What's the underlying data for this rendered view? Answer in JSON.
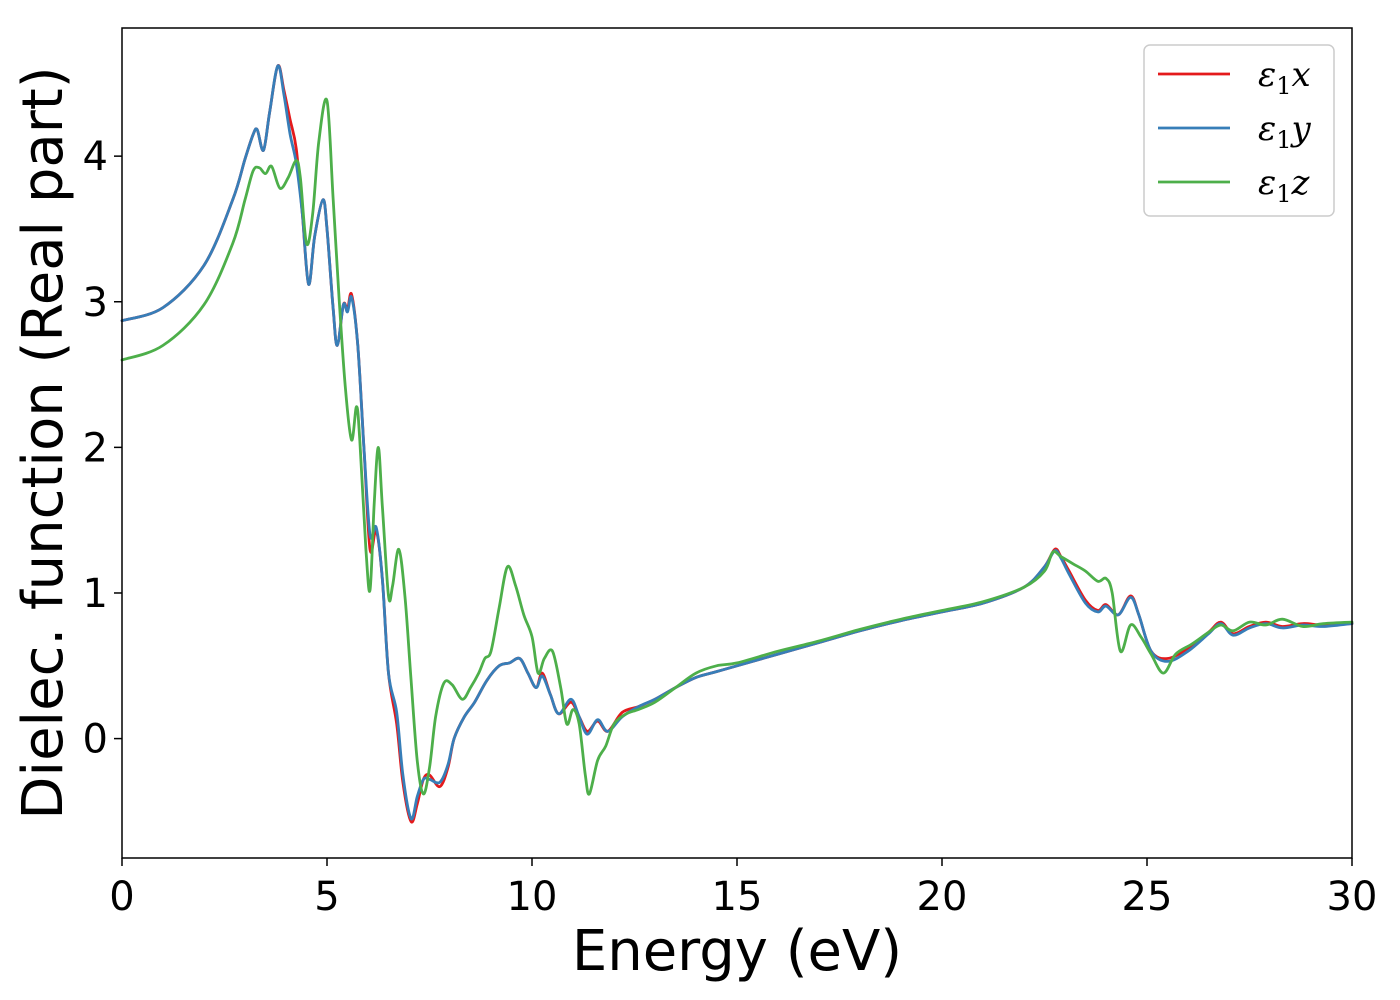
{
  "chart_data": {
    "type": "line",
    "title": "",
    "xlabel": "Energy (eV)",
    "ylabel": "Dielec. function (Real part)",
    "xlim": [
      0,
      30
    ],
    "ylim": [
      -0.82,
      4.88
    ],
    "xticks": [
      0,
      5,
      10,
      15,
      20,
      25,
      30
    ],
    "yticks": [
      0,
      1,
      2,
      3,
      4
    ],
    "grid": false,
    "legend": "top-right",
    "series": [
      {
        "name": "ε₁x",
        "legend_base": "ε",
        "legend_sub": "1",
        "legend_tail": "x",
        "color": "#e41a1c",
        "points": [
          [
            0,
            2.87
          ],
          [
            1,
            2.96
          ],
          [
            2,
            3.25
          ],
          [
            2.7,
            3.7
          ],
          [
            3.0,
            3.98
          ],
          [
            3.2,
            4.15
          ],
          [
            3.3,
            4.18
          ],
          [
            3.45,
            4.04
          ],
          [
            3.6,
            4.3
          ],
          [
            3.8,
            4.62
          ],
          [
            3.95,
            4.45
          ],
          [
            4.1,
            4.25
          ],
          [
            4.25,
            4.05
          ],
          [
            4.4,
            3.6
          ],
          [
            4.55,
            3.12
          ],
          [
            4.7,
            3.45
          ],
          [
            4.9,
            3.7
          ],
          [
            5.0,
            3.5
          ],
          [
            5.15,
            2.95
          ],
          [
            5.25,
            2.7
          ],
          [
            5.4,
            2.98
          ],
          [
            5.5,
            2.95
          ],
          [
            5.6,
            3.05
          ],
          [
            5.75,
            2.7
          ],
          [
            5.9,
            2.0
          ],
          [
            6.05,
            1.3
          ],
          [
            6.2,
            1.43
          ],
          [
            6.35,
            1.1
          ],
          [
            6.5,
            0.45
          ],
          [
            6.7,
            0.1
          ],
          [
            6.85,
            -0.3
          ],
          [
            7.05,
            -0.57
          ],
          [
            7.2,
            -0.45
          ],
          [
            7.35,
            -0.28
          ],
          [
            7.5,
            -0.25
          ],
          [
            7.75,
            -0.33
          ],
          [
            7.95,
            -0.2
          ],
          [
            8.1,
            0.0
          ],
          [
            8.35,
            0.15
          ],
          [
            8.6,
            0.25
          ],
          [
            8.9,
            0.4
          ],
          [
            9.2,
            0.5
          ],
          [
            9.45,
            0.52
          ],
          [
            9.7,
            0.55
          ],
          [
            9.9,
            0.45
          ],
          [
            10.1,
            0.35
          ],
          [
            10.25,
            0.45
          ],
          [
            10.45,
            0.3
          ],
          [
            10.65,
            0.17
          ],
          [
            10.95,
            0.25
          ],
          [
            11.15,
            0.15
          ],
          [
            11.35,
            0.05
          ],
          [
            11.6,
            0.12
          ],
          [
            11.85,
            0.05
          ],
          [
            12.2,
            0.18
          ],
          [
            12.6,
            0.22
          ],
          [
            13.0,
            0.27
          ],
          [
            13.5,
            0.35
          ],
          [
            14.0,
            0.42
          ],
          [
            14.5,
            0.46
          ],
          [
            15.0,
            0.5
          ],
          [
            16.0,
            0.58
          ],
          [
            17.0,
            0.66
          ],
          [
            18.0,
            0.74
          ],
          [
            19.0,
            0.81
          ],
          [
            20.0,
            0.87
          ],
          [
            21.0,
            0.93
          ],
          [
            22.0,
            1.04
          ],
          [
            22.5,
            1.18
          ],
          [
            22.75,
            1.3
          ],
          [
            22.9,
            1.25
          ],
          [
            23.1,
            1.15
          ],
          [
            23.5,
            0.95
          ],
          [
            23.8,
            0.88
          ],
          [
            24.0,
            0.92
          ],
          [
            24.3,
            0.85
          ],
          [
            24.6,
            0.98
          ],
          [
            24.8,
            0.85
          ],
          [
            25.1,
            0.6
          ],
          [
            25.5,
            0.55
          ],
          [
            26.0,
            0.62
          ],
          [
            26.5,
            0.73
          ],
          [
            26.8,
            0.8
          ],
          [
            27.1,
            0.72
          ],
          [
            27.5,
            0.77
          ],
          [
            27.9,
            0.8
          ],
          [
            28.3,
            0.77
          ],
          [
            28.8,
            0.79
          ],
          [
            29.3,
            0.78
          ],
          [
            30.0,
            0.79
          ]
        ]
      },
      {
        "name": "ε₁y",
        "legend_base": "ε",
        "legend_sub": "1",
        "legend_tail": "y",
        "color": "#377eb8",
        "points": [
          [
            0,
            2.87
          ],
          [
            1,
            2.96
          ],
          [
            2,
            3.25
          ],
          [
            2.7,
            3.7
          ],
          [
            3.0,
            3.98
          ],
          [
            3.2,
            4.15
          ],
          [
            3.3,
            4.18
          ],
          [
            3.45,
            4.04
          ],
          [
            3.6,
            4.3
          ],
          [
            3.8,
            4.62
          ],
          [
            3.95,
            4.42
          ],
          [
            4.1,
            4.15
          ],
          [
            4.25,
            3.95
          ],
          [
            4.4,
            3.6
          ],
          [
            4.55,
            3.12
          ],
          [
            4.7,
            3.45
          ],
          [
            4.9,
            3.7
          ],
          [
            5.0,
            3.5
          ],
          [
            5.15,
            2.95
          ],
          [
            5.25,
            2.7
          ],
          [
            5.4,
            2.98
          ],
          [
            5.5,
            2.93
          ],
          [
            5.6,
            3.03
          ],
          [
            5.75,
            2.7
          ],
          [
            5.9,
            2.0
          ],
          [
            6.05,
            1.4
          ],
          [
            6.2,
            1.45
          ],
          [
            6.35,
            1.1
          ],
          [
            6.5,
            0.45
          ],
          [
            6.7,
            0.18
          ],
          [
            6.85,
            -0.25
          ],
          [
            7.05,
            -0.55
          ],
          [
            7.2,
            -0.4
          ],
          [
            7.35,
            -0.28
          ],
          [
            7.5,
            -0.28
          ],
          [
            7.75,
            -0.3
          ],
          [
            7.95,
            -0.18
          ],
          [
            8.1,
            0.0
          ],
          [
            8.35,
            0.15
          ],
          [
            8.6,
            0.25
          ],
          [
            8.9,
            0.4
          ],
          [
            9.2,
            0.5
          ],
          [
            9.45,
            0.52
          ],
          [
            9.7,
            0.55
          ],
          [
            9.9,
            0.45
          ],
          [
            10.1,
            0.35
          ],
          [
            10.25,
            0.43
          ],
          [
            10.45,
            0.3
          ],
          [
            10.65,
            0.17
          ],
          [
            10.95,
            0.27
          ],
          [
            11.15,
            0.15
          ],
          [
            11.35,
            0.03
          ],
          [
            11.6,
            0.13
          ],
          [
            11.85,
            0.05
          ],
          [
            12.2,
            0.15
          ],
          [
            12.6,
            0.22
          ],
          [
            13.0,
            0.27
          ],
          [
            13.5,
            0.35
          ],
          [
            14.0,
            0.42
          ],
          [
            14.5,
            0.46
          ],
          [
            15.0,
            0.5
          ],
          [
            16.0,
            0.58
          ],
          [
            17.0,
            0.66
          ],
          [
            18.0,
            0.74
          ],
          [
            19.0,
            0.81
          ],
          [
            20.0,
            0.87
          ],
          [
            21.0,
            0.93
          ],
          [
            22.0,
            1.04
          ],
          [
            22.5,
            1.18
          ],
          [
            22.75,
            1.29
          ],
          [
            22.9,
            1.24
          ],
          [
            23.1,
            1.13
          ],
          [
            23.5,
            0.93
          ],
          [
            23.8,
            0.87
          ],
          [
            24.0,
            0.91
          ],
          [
            24.3,
            0.85
          ],
          [
            24.6,
            0.97
          ],
          [
            24.8,
            0.85
          ],
          [
            25.1,
            0.6
          ],
          [
            25.5,
            0.53
          ],
          [
            26.0,
            0.6
          ],
          [
            26.5,
            0.72
          ],
          [
            26.8,
            0.79
          ],
          [
            27.1,
            0.71
          ],
          [
            27.5,
            0.76
          ],
          [
            27.9,
            0.79
          ],
          [
            28.3,
            0.76
          ],
          [
            28.8,
            0.78
          ],
          [
            29.3,
            0.77
          ],
          [
            30.0,
            0.79
          ]
        ]
      },
      {
        "name": "ε₁z",
        "legend_base": "ε",
        "legend_sub": "1",
        "legend_tail": "z",
        "color": "#4daf4a",
        "points": [
          [
            0,
            2.6
          ],
          [
            1,
            2.7
          ],
          [
            2,
            2.98
          ],
          [
            2.7,
            3.4
          ],
          [
            3.0,
            3.7
          ],
          [
            3.2,
            3.9
          ],
          [
            3.35,
            3.92
          ],
          [
            3.5,
            3.88
          ],
          [
            3.65,
            3.93
          ],
          [
            3.85,
            3.78
          ],
          [
            4.05,
            3.85
          ],
          [
            4.25,
            3.97
          ],
          [
            4.35,
            3.85
          ],
          [
            4.5,
            3.4
          ],
          [
            4.65,
            3.6
          ],
          [
            4.8,
            4.1
          ],
          [
            5.0,
            4.38
          ],
          [
            5.15,
            3.7
          ],
          [
            5.3,
            3.0
          ],
          [
            5.45,
            2.4
          ],
          [
            5.6,
            2.05
          ],
          [
            5.72,
            2.28
          ],
          [
            5.8,
            2.05
          ],
          [
            5.95,
            1.3
          ],
          [
            6.05,
            1.02
          ],
          [
            6.15,
            1.6
          ],
          [
            6.25,
            2.0
          ],
          [
            6.35,
            1.6
          ],
          [
            6.5,
            0.98
          ],
          [
            6.6,
            1.05
          ],
          [
            6.75,
            1.3
          ],
          [
            6.9,
            0.98
          ],
          [
            7.05,
            0.4
          ],
          [
            7.2,
            -0.15
          ],
          [
            7.35,
            -0.38
          ],
          [
            7.5,
            -0.2
          ],
          [
            7.65,
            0.15
          ],
          [
            7.85,
            0.38
          ],
          [
            8.05,
            0.37
          ],
          [
            8.3,
            0.27
          ],
          [
            8.5,
            0.35
          ],
          [
            8.7,
            0.45
          ],
          [
            8.85,
            0.55
          ],
          [
            9.0,
            0.6
          ],
          [
            9.2,
            0.9
          ],
          [
            9.4,
            1.18
          ],
          [
            9.6,
            1.05
          ],
          [
            9.8,
            0.85
          ],
          [
            10.0,
            0.7
          ],
          [
            10.15,
            0.45
          ],
          [
            10.3,
            0.55
          ],
          [
            10.5,
            0.6
          ],
          [
            10.7,
            0.35
          ],
          [
            10.85,
            0.1
          ],
          [
            11.0,
            0.2
          ],
          [
            11.15,
            0.1
          ],
          [
            11.3,
            -0.25
          ],
          [
            11.4,
            -0.38
          ],
          [
            11.6,
            -0.15
          ],
          [
            11.8,
            -0.05
          ],
          [
            12.0,
            0.1
          ],
          [
            12.3,
            0.17
          ],
          [
            12.6,
            0.2
          ],
          [
            13.0,
            0.25
          ],
          [
            13.5,
            0.35
          ],
          [
            14.0,
            0.45
          ],
          [
            14.5,
            0.5
          ],
          [
            15.0,
            0.52
          ],
          [
            16.0,
            0.6
          ],
          [
            17.0,
            0.67
          ],
          [
            18.0,
            0.75
          ],
          [
            19.0,
            0.82
          ],
          [
            20.0,
            0.88
          ],
          [
            21.0,
            0.94
          ],
          [
            22.0,
            1.04
          ],
          [
            22.5,
            1.15
          ],
          [
            22.7,
            1.28
          ],
          [
            22.9,
            1.25
          ],
          [
            23.2,
            1.2
          ],
          [
            23.5,
            1.15
          ],
          [
            23.8,
            1.08
          ],
          [
            24.0,
            1.1
          ],
          [
            24.15,
            1.0
          ],
          [
            24.35,
            0.6
          ],
          [
            24.6,
            0.78
          ],
          [
            24.85,
            0.7
          ],
          [
            25.1,
            0.58
          ],
          [
            25.4,
            0.45
          ],
          [
            25.7,
            0.58
          ],
          [
            26.1,
            0.65
          ],
          [
            26.5,
            0.73
          ],
          [
            26.8,
            0.78
          ],
          [
            27.1,
            0.74
          ],
          [
            27.5,
            0.8
          ],
          [
            27.9,
            0.78
          ],
          [
            28.3,
            0.82
          ],
          [
            28.8,
            0.77
          ],
          [
            29.3,
            0.79
          ],
          [
            30.0,
            0.8
          ]
        ]
      }
    ]
  }
}
